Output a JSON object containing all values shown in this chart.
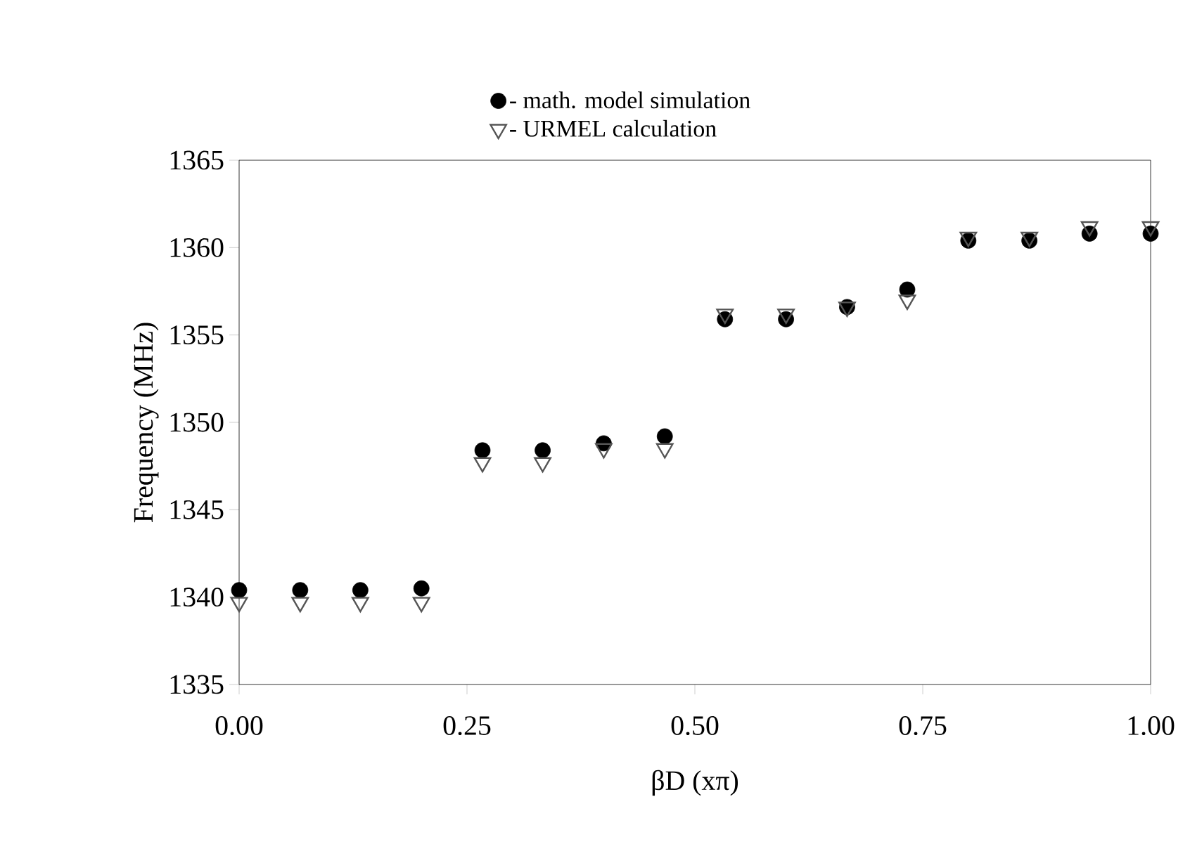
{
  "chart_data": {
    "type": "scatter",
    "xlabel": "βD (xπ)",
    "ylabel": "Frequency (MHz)",
    "x": [
      0,
      0.067,
      0.133,
      0.2,
      0.267,
      0.333,
      0.4,
      0.467,
      0.533,
      0.6,
      0.667,
      0.733,
      0.8,
      0.867,
      0.933,
      1
    ],
    "series": [
      {
        "name": "- math. model simulation",
        "color": "#000000",
        "marker": "circle",
        "values": [
          1340.4,
          1340.4,
          1340.4,
          1340.5,
          1348.4,
          1348.4,
          1348.8,
          1349.2,
          1355.9,
          1355.9,
          1356.6,
          1357.6,
          1360.4,
          1360.4,
          1360.8,
          1360.8
        ]
      },
      {
        "name": "- URMEL calculation",
        "color": "#555555",
        "marker": "triangle",
        "values": [
          1339.7,
          1339.7,
          1339.7,
          1339.7,
          1347.7,
          1347.7,
          1348.5,
          1348.5,
          1356.2,
          1356.2,
          1356.6,
          1357.0,
          1360.6,
          1360.6,
          1361.2,
          1361.2
        ]
      }
    ],
    "xlim": [
      0,
      1
    ],
    "ylim": [
      1335,
      1365
    ],
    "xticks": [
      {
        "value": 0,
        "label": "0.00"
      },
      {
        "value": 0.25,
        "label": "0.25"
      },
      {
        "value": 0.5,
        "label": "0.50"
      },
      {
        "value": 0.75,
        "label": "0.75"
      },
      {
        "value": 1,
        "label": "1.00"
      }
    ],
    "yticks": [
      1335,
      1340,
      1345,
      1350,
      1355,
      1360,
      1365
    ],
    "legend": "top"
  }
}
